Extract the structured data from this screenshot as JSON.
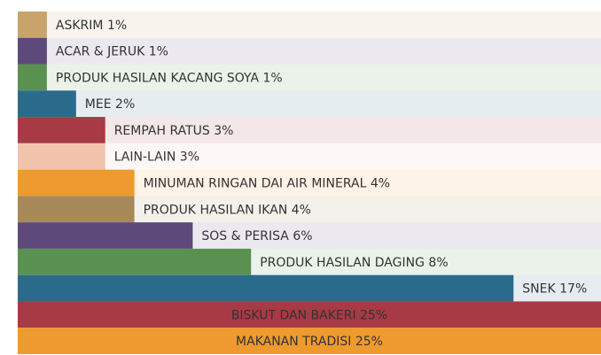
{
  "chart_data": {
    "type": "bar",
    "orientation": "horizontal",
    "categories": [
      "ASKRIM",
      "ACAR & JERUK",
      "PRODUK HASILAN KACANG SOYA",
      "MEE",
      "REMPAH RATUS",
      "LAIN-LAIN",
      "MINUMAN RINGAN DAI AIR MINERAL",
      "PRODUK HASILAN IKAN",
      "SOS & PERISA",
      "PRODUK HASILAN DAGING",
      "SNEK",
      "BISKUT DAN BAKERI",
      "MAKANAN TRADISI"
    ],
    "values": [
      1,
      1,
      1,
      2,
      3,
      3,
      4,
      4,
      6,
      8,
      17,
      25,
      25
    ],
    "value_labels": [
      "1%",
      "1%",
      "1%",
      "2%",
      "3%",
      "3%",
      "4%",
      "4%",
      "6%",
      "8%",
      "17%",
      "25%",
      "25%"
    ],
    "colors": [
      "#c9a46a",
      "#5e4a7a",
      "#5a9150",
      "#2a6b8c",
      "#a83a45",
      "#f2c4ad",
      "#ee9a2e",
      "#a88a5a",
      "#5e4a7a",
      "#5a9150",
      "#2a6b8c",
      "#a83a45",
      "#ee9a2e"
    ],
    "xlim": [
      0,
      20
    ]
  }
}
